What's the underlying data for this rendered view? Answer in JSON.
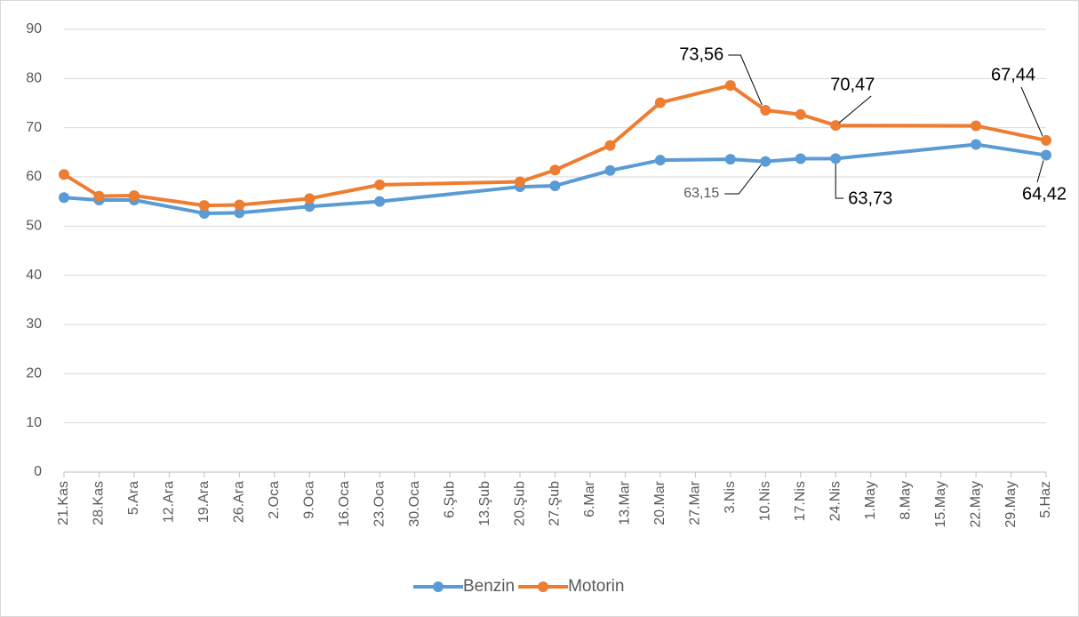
{
  "chart_data": {
    "type": "line",
    "x": [
      0,
      7,
      14,
      28,
      35,
      49,
      63,
      91,
      98,
      109,
      119,
      133,
      140,
      147,
      154,
      182,
      196
    ],
    "xlim": [
      0,
      196
    ],
    "xticks": [
      {
        "value": 0,
        "label": "21.Kas"
      },
      {
        "value": 7,
        "label": "28.Kas"
      },
      {
        "value": 14,
        "label": "5.Ara"
      },
      {
        "value": 21,
        "label": "12.Ara"
      },
      {
        "value": 28,
        "label": "19.Ara"
      },
      {
        "value": 35,
        "label": "26.Ara"
      },
      {
        "value": 42,
        "label": "2.Oca"
      },
      {
        "value": 49,
        "label": "9.Oca"
      },
      {
        "value": 56,
        "label": "16.Oca"
      },
      {
        "value": 63,
        "label": "23.Oca"
      },
      {
        "value": 70,
        "label": "30.Oca"
      },
      {
        "value": 77,
        "label": "6.Şub"
      },
      {
        "value": 84,
        "label": "13.Şub"
      },
      {
        "value": 91,
        "label": "20.Şub"
      },
      {
        "value": 98,
        "label": "27.Şub"
      },
      {
        "value": 105,
        "label": "6.Mar"
      },
      {
        "value": 112,
        "label": "13.Mar"
      },
      {
        "value": 119,
        "label": "20.Mar"
      },
      {
        "value": 126,
        "label": "27.Mar"
      },
      {
        "value": 133,
        "label": "3.Nis"
      },
      {
        "value": 140,
        "label": "10.Nis"
      },
      {
        "value": 147,
        "label": "17.Nis"
      },
      {
        "value": 154,
        "label": "24.Nis"
      },
      {
        "value": 161,
        "label": "1.May"
      },
      {
        "value": 168,
        "label": "8.May"
      },
      {
        "value": 175,
        "label": "15.May"
      },
      {
        "value": 182,
        "label": "22.May"
      },
      {
        "value": 189,
        "label": "29.May"
      },
      {
        "value": 196,
        "label": "5.Haz"
      }
    ],
    "ylim": [
      0,
      90
    ],
    "yticks": [
      0,
      10,
      20,
      30,
      40,
      50,
      60,
      70,
      80,
      90
    ],
    "grid": true,
    "legend": "bottom",
    "series": [
      {
        "name": "Benzin",
        "color": "#5b9bd5",
        "values": [
          55.8,
          55.3,
          55.3,
          52.6,
          52.7,
          54,
          55,
          58,
          58.2,
          61.3,
          63.4,
          63.6,
          63.15,
          63.7,
          63.73,
          66.6,
          64.42
        ],
        "value_labels": [
          null,
          null,
          null,
          null,
          null,
          null,
          null,
          null,
          null,
          null,
          null,
          null,
          "63,15",
          null,
          "63,73",
          null,
          "64,42"
        ]
      },
      {
        "name": "Motorin",
        "color": "#ed7d31",
        "values": [
          60.5,
          56.1,
          56.2,
          54.2,
          54.3,
          55.6,
          58.4,
          59,
          61.4,
          66.4,
          75.1,
          78.6,
          73.56,
          72.7,
          70.47,
          70.4,
          67.44
        ],
        "value_labels": [
          null,
          null,
          null,
          null,
          null,
          null,
          null,
          null,
          null,
          null,
          null,
          null,
          "73,56",
          null,
          "70,47",
          null,
          "67,44"
        ]
      }
    ]
  }
}
